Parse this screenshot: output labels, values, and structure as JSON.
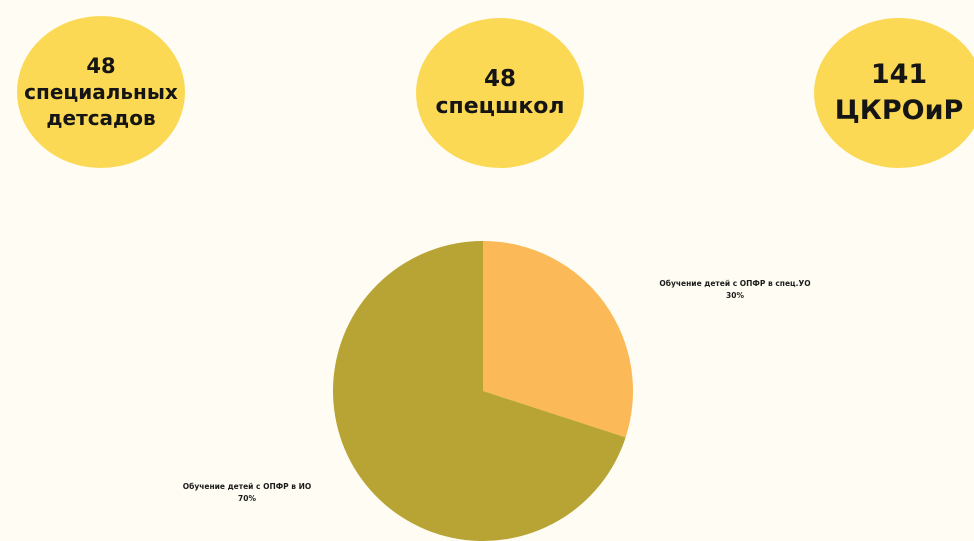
{
  "stats": [
    {
      "number": "48",
      "label": "специальных детсадов",
      "color": "#fbd955"
    },
    {
      "number": "48",
      "label": "спецшкол",
      "color": "#fbd955"
    },
    {
      "number": "141",
      "label": "ЦКРОиР",
      "color": "#fbd955"
    }
  ],
  "chart_data": {
    "type": "pie",
    "title": "",
    "slices": [
      {
        "label": "Обучение детей с ОПФР в спец.УО",
        "value": 30,
        "value_label": "30%",
        "color": "#fbb957"
      },
      {
        "label": "Обучение детей с ОПФР в ИО",
        "value": 70,
        "value_label": "70%",
        "color": "#b8a434"
      }
    ]
  },
  "background_color": "#fffdf3"
}
